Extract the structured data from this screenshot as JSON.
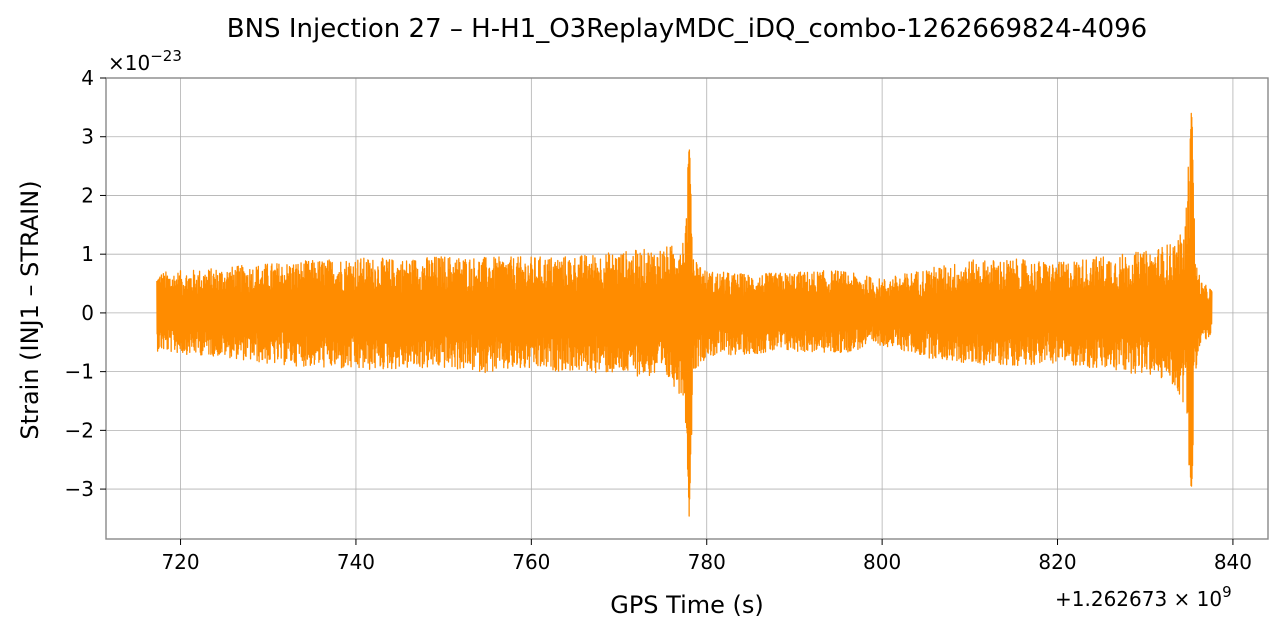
{
  "chart_data": {
    "type": "line",
    "title": "BNS Injection 27 – H-H1_O3ReplayMDC_iDQ_combo-1262669824-4096",
    "xlabel": "GPS Time (s)",
    "ylabel": "Strain (INJ1 – STRAIN)",
    "x_offset_label": "+1.262673",
    "x_offset_exp_base": "10",
    "x_offset_exp": "9",
    "y_scale_label_base": "×10",
    "y_scale_label_exp": "−23",
    "xlim": [
      711.5,
      844.0
    ],
    "ylim": [
      -3.85,
      4.0
    ],
    "x_ticks": [
      720,
      740,
      760,
      780,
      800,
      820,
      840
    ],
    "x_tick_labels": [
      "720",
      "740",
      "760",
      "780",
      "800",
      "820",
      "840"
    ],
    "y_ticks": [
      -3,
      -2,
      -1,
      0,
      1,
      2,
      3,
      4
    ],
    "y_tick_labels": [
      "−3",
      "−2",
      "−1",
      "0",
      "1",
      "2",
      "3",
      "4"
    ],
    "grid": true,
    "series": [
      {
        "color": "#ff8c00",
        "x_start": 717.3,
        "x_end": 837.6,
        "envelope": {
          "x": [
            717.3,
            720,
            725,
            730,
            735,
            740,
            745,
            750,
            755,
            760,
            765,
            770,
            774,
            776,
            777.5,
            778.0,
            778.5,
            780,
            785,
            790,
            795,
            800,
            805,
            810,
            815,
            820,
            825,
            830,
            833,
            834.5,
            835.3,
            835.7,
            836.5,
            837.6
          ],
          "upper": [
            0.7,
            0.72,
            0.78,
            0.85,
            0.9,
            0.95,
            0.92,
            0.98,
            0.95,
            0.96,
            0.98,
            1.05,
            1.1,
            1.15,
            1.4,
            2.95,
            1.0,
            0.72,
            0.66,
            0.7,
            0.73,
            0.58,
            0.76,
            0.9,
            0.92,
            0.86,
            0.98,
            1.05,
            1.2,
            1.4,
            3.65,
            0.95,
            0.5,
            0.42
          ],
          "lower": [
            -0.65,
            -0.7,
            -0.75,
            -0.88,
            -0.92,
            -1.0,
            -0.96,
            -0.95,
            -1.02,
            -0.98,
            -1.0,
            -1.05,
            -1.1,
            -1.2,
            -1.5,
            -3.5,
            -1.0,
            -0.75,
            -0.7,
            -0.66,
            -0.7,
            -0.55,
            -0.76,
            -0.88,
            -0.9,
            -0.85,
            -0.98,
            -1.05,
            -1.2,
            -1.6,
            -3.2,
            -1.0,
            -0.5,
            -0.4
          ]
        }
      }
    ]
  }
}
